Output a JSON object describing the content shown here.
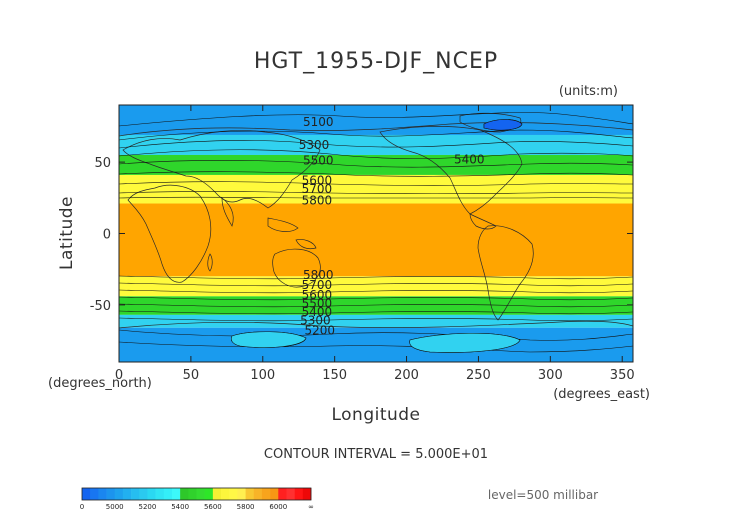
{
  "chart_data": {
    "type": "heatmap",
    "title": "HGT_1955-DJF_NCEP",
    "units": "(units:m)",
    "xlabel": "Longitude",
    "ylabel": "Latitude",
    "x_unit_label": "(degrees_east)",
    "y_unit_label": "(degrees_north)",
    "xlim": [
      0,
      357.5
    ],
    "ylim": [
      -90,
      90
    ],
    "x_ticks": [
      0,
      50,
      100,
      150,
      200,
      250,
      300,
      350
    ],
    "y_ticks": [
      50,
      0,
      -50
    ],
    "contour_interval_text": "CONTOUR INTERVAL = 5.000E+01",
    "level_text": "level=500 millibar",
    "contour_labels": [
      {
        "text": "5100",
        "lon": 128,
        "lat": 78
      },
      {
        "text": "5400",
        "lon": 233,
        "lat": 52
      },
      {
        "text": "5300",
        "lon": 125,
        "lat": 62
      },
      {
        "text": "5500",
        "lon": 128,
        "lat": 51
      },
      {
        "text": "5600",
        "lon": 127,
        "lat": 37
      },
      {
        "text": "5700",
        "lon": 127,
        "lat": 31
      },
      {
        "text": "5800",
        "lon": 127,
        "lat": 23
      },
      {
        "text": "5800",
        "lon": 128,
        "lat": -29
      },
      {
        "text": "5700",
        "lon": 127,
        "lat": -36
      },
      {
        "text": "5600",
        "lon": 127,
        "lat": -43
      },
      {
        "text": "5500",
        "lon": 127,
        "lat": -49
      },
      {
        "text": "5400",
        "lon": 127,
        "lat": -55
      },
      {
        "text": "5300",
        "lon": 126,
        "lat": -61
      },
      {
        "text": "5200",
        "lon": 129,
        "lat": -68
      }
    ],
    "bands": [
      {
        "value_range": [
          5000,
          5200
        ],
        "color": "#1a9bee",
        "lat_start": 90,
        "lat_end": 69
      },
      {
        "value_range": [
          5200,
          5400
        ],
        "color": "#31d2f0",
        "lat_start": 69,
        "lat_end": 55
      },
      {
        "value_range": [
          5400,
          5600
        ],
        "color": "#2fd62b",
        "lat_start": 55,
        "lat_end": 41
      },
      {
        "value_range": [
          5600,
          5800
        ],
        "color": "#fffa3c",
        "lat_start": 41,
        "lat_end": 21
      },
      {
        "value_range": [
          5800,
          6000
        ],
        "color": "#ffa500",
        "lat_start": 21,
        "lat_end": -30
      },
      {
        "value_range": [
          5600,
          5800
        ],
        "color": "#fffa3c",
        "lat_start": -30,
        "lat_end": -44
      },
      {
        "value_range": [
          5400,
          5600
        ],
        "color": "#2fd62b",
        "lat_start": -44,
        "lat_end": -57
      },
      {
        "value_range": [
          5200,
          5400
        ],
        "color": "#31d2f0",
        "lat_start": -57,
        "lat_end": -66
      },
      {
        "value_range": [
          5000,
          5200
        ],
        "color": "#1a9bee",
        "lat_start": -66,
        "lat_end": -90
      }
    ],
    "colorbar": {
      "labels": [
        "0",
        "5000",
        "5200",
        "5400",
        "5600",
        "5800",
        "6000",
        "∞"
      ],
      "groups": [
        {
          "colors": [
            "#1464f0",
            "#1876f2",
            "#1a86f0",
            "#1c94ee"
          ]
        },
        {
          "colors": [
            "#1ea2ee",
            "#22b0f0",
            "#26bef0",
            "#2acaf0"
          ]
        },
        {
          "colors": [
            "#2ad8f2",
            "#30e4f4",
            "#34eef8",
            "#3cf8fa"
          ]
        },
        {
          "colors": [
            "#2ec82a",
            "#30d22c",
            "#34dc30",
            "#2ee628"
          ]
        },
        {
          "colors": [
            "#f4f034",
            "#fcf63c",
            "#fff846",
            "#fff050"
          ]
        },
        {
          "colors": [
            "#f8c832",
            "#f8b428",
            "#f8a41c",
            "#f89614"
          ]
        },
        {
          "colors": [
            "#ff2020",
            "#ff3030",
            "#ff1414",
            "#ee0808"
          ]
        }
      ]
    }
  }
}
